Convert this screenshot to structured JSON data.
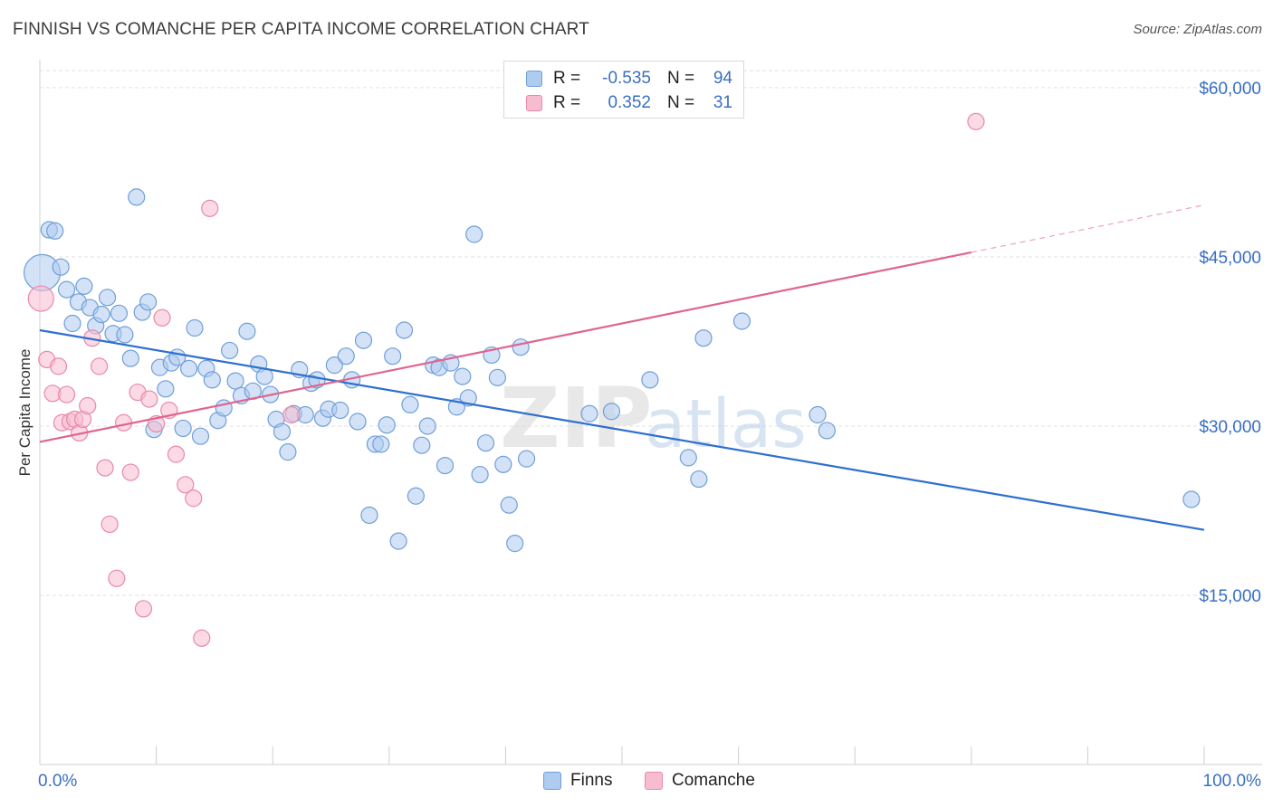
{
  "title": "FINNISH VS COMANCHE PER CAPITA INCOME CORRELATION CHART",
  "source": "Source: ZipAtlas.com",
  "watermark": {
    "zip": "ZIP",
    "atlas": "atlas"
  },
  "legend": {
    "finns": {
      "r_label": "R =",
      "r_value": "-0.535",
      "n_label": "N =",
      "n_value": "94"
    },
    "comanche": {
      "r_label": "R =",
      "r_value": "0.352",
      "n_label": "N =",
      "n_value": "31"
    }
  },
  "bottom_legend": {
    "finns": "Finns",
    "comanche": "Comanche"
  },
  "colors": {
    "finns_fill": "#aecbf0",
    "finns_stroke": "#6f9fd8",
    "finns_line": "#2e6fd0",
    "comanche_fill": "#f7bcd0",
    "comanche_stroke": "#e889a8",
    "comanche_line": "#e0648e",
    "axis_text": "#3a6fc4",
    "grid": "#e2e2e2"
  },
  "chart_data": {
    "type": "scatter",
    "title": "FINNISH VS COMANCHE PER CAPITA INCOME CORRELATION CHART",
    "xlabel": "",
    "ylabel": "Per Capita Income",
    "xlim": [
      0,
      100
    ],
    "ylim": [
      0,
      62000
    ],
    "x_tick_labels": [
      "0.0%",
      "100.0%"
    ],
    "y_ticks": [
      15000,
      30000,
      45000,
      60000
    ],
    "y_tick_labels": [
      "$15,000",
      "$30,000",
      "$45,000",
      "$60,000"
    ],
    "grid": true,
    "legend_position": "top-center",
    "series": [
      {
        "name": "Finns",
        "r": -0.535,
        "n": 94,
        "trend": {
          "x": [
            0,
            100
          ],
          "y": [
            38500,
            20800
          ]
        },
        "points": [
          [
            0.2,
            43600
          ],
          [
            0.8,
            47400
          ],
          [
            1.3,
            47300
          ],
          [
            1.8,
            44100
          ],
          [
            2.3,
            42100
          ],
          [
            2.8,
            39100
          ],
          [
            3.3,
            41000
          ],
          [
            3.8,
            42400
          ],
          [
            4.3,
            40500
          ],
          [
            4.8,
            38900
          ],
          [
            5.3,
            39900
          ],
          [
            5.8,
            41400
          ],
          [
            6.3,
            38200
          ],
          [
            6.8,
            40000
          ],
          [
            7.3,
            38100
          ],
          [
            7.8,
            36000
          ],
          [
            8.3,
            50300
          ],
          [
            8.8,
            40100
          ],
          [
            9.3,
            41000
          ],
          [
            9.8,
            29700
          ],
          [
            10.3,
            35200
          ],
          [
            10.8,
            33300
          ],
          [
            11.3,
            35600
          ],
          [
            11.8,
            36100
          ],
          [
            12.3,
            29800
          ],
          [
            12.8,
            35100
          ],
          [
            13.3,
            38700
          ],
          [
            13.8,
            29100
          ],
          [
            14.3,
            35100
          ],
          [
            14.8,
            34100
          ],
          [
            15.3,
            30500
          ],
          [
            15.8,
            31600
          ],
          [
            16.3,
            36700
          ],
          [
            16.8,
            34000
          ],
          [
            17.3,
            32700
          ],
          [
            17.8,
            38400
          ],
          [
            18.3,
            33100
          ],
          [
            18.8,
            35500
          ],
          [
            19.3,
            34400
          ],
          [
            19.8,
            32800
          ],
          [
            20.3,
            30600
          ],
          [
            20.8,
            29500
          ],
          [
            21.3,
            27700
          ],
          [
            21.8,
            31100
          ],
          [
            22.3,
            35000
          ],
          [
            22.8,
            31000
          ],
          [
            23.3,
            33800
          ],
          [
            23.8,
            34100
          ],
          [
            24.3,
            30700
          ],
          [
            24.8,
            31500
          ],
          [
            25.3,
            35400
          ],
          [
            25.8,
            31400
          ],
          [
            26.3,
            36200
          ],
          [
            26.8,
            34100
          ],
          [
            27.3,
            30400
          ],
          [
            27.8,
            37600
          ],
          [
            28.3,
            22100
          ],
          [
            28.8,
            28400
          ],
          [
            29.3,
            28400
          ],
          [
            29.8,
            30100
          ],
          [
            30.3,
            36200
          ],
          [
            30.8,
            19800
          ],
          [
            31.3,
            38500
          ],
          [
            31.8,
            31900
          ],
          [
            32.3,
            23800
          ],
          [
            32.8,
            28300
          ],
          [
            33.3,
            30000
          ],
          [
            33.8,
            35400
          ],
          [
            34.3,
            35200
          ],
          [
            34.8,
            26500
          ],
          [
            35.3,
            35600
          ],
          [
            35.8,
            31700
          ],
          [
            36.3,
            34400
          ],
          [
            36.8,
            32500
          ],
          [
            37.3,
            47000
          ],
          [
            37.8,
            25700
          ],
          [
            38.3,
            28500
          ],
          [
            38.8,
            36300
          ],
          [
            39.3,
            34300
          ],
          [
            39.8,
            26600
          ],
          [
            40.3,
            23000
          ],
          [
            40.8,
            19600
          ],
          [
            41.3,
            37000
          ],
          [
            41.8,
            27100
          ],
          [
            47.2,
            31100
          ],
          [
            49.1,
            31300
          ],
          [
            52.4,
            34100
          ],
          [
            55.7,
            27200
          ],
          [
            56.6,
            25300
          ],
          [
            57.0,
            37800
          ],
          [
            60.3,
            39300
          ],
          [
            66.8,
            31000
          ],
          [
            67.6,
            29600
          ],
          [
            98.9,
            23500
          ]
        ]
      },
      {
        "name": "Comanche",
        "r": 0.352,
        "n": 31,
        "trend": {
          "x": [
            0,
            80
          ],
          "y": [
            28600,
            45400
          ]
        },
        "trend_ext": {
          "x": [
            80,
            100
          ],
          "y": [
            45400,
            49600
          ]
        },
        "points": [
          [
            0.1,
            41300
          ],
          [
            0.6,
            35900
          ],
          [
            1.1,
            32900
          ],
          [
            1.6,
            35300
          ],
          [
            1.9,
            30300
          ],
          [
            2.3,
            32800
          ],
          [
            2.6,
            30400
          ],
          [
            3.0,
            30600
          ],
          [
            3.4,
            29400
          ],
          [
            3.7,
            30600
          ],
          [
            4.1,
            31800
          ],
          [
            4.5,
            37800
          ],
          [
            5.1,
            35300
          ],
          [
            5.6,
            26300
          ],
          [
            6.0,
            21300
          ],
          [
            6.6,
            16500
          ],
          [
            7.2,
            30300
          ],
          [
            7.8,
            25900
          ],
          [
            8.4,
            33000
          ],
          [
            8.9,
            13800
          ],
          [
            9.4,
            32400
          ],
          [
            10.0,
            30200
          ],
          [
            10.5,
            39600
          ],
          [
            11.1,
            31400
          ],
          [
            11.7,
            27500
          ],
          [
            12.5,
            24800
          ],
          [
            13.2,
            23600
          ],
          [
            13.9,
            11200
          ],
          [
            14.6,
            49300
          ],
          [
            21.6,
            31000
          ],
          [
            80.4,
            57000
          ]
        ]
      }
    ]
  }
}
